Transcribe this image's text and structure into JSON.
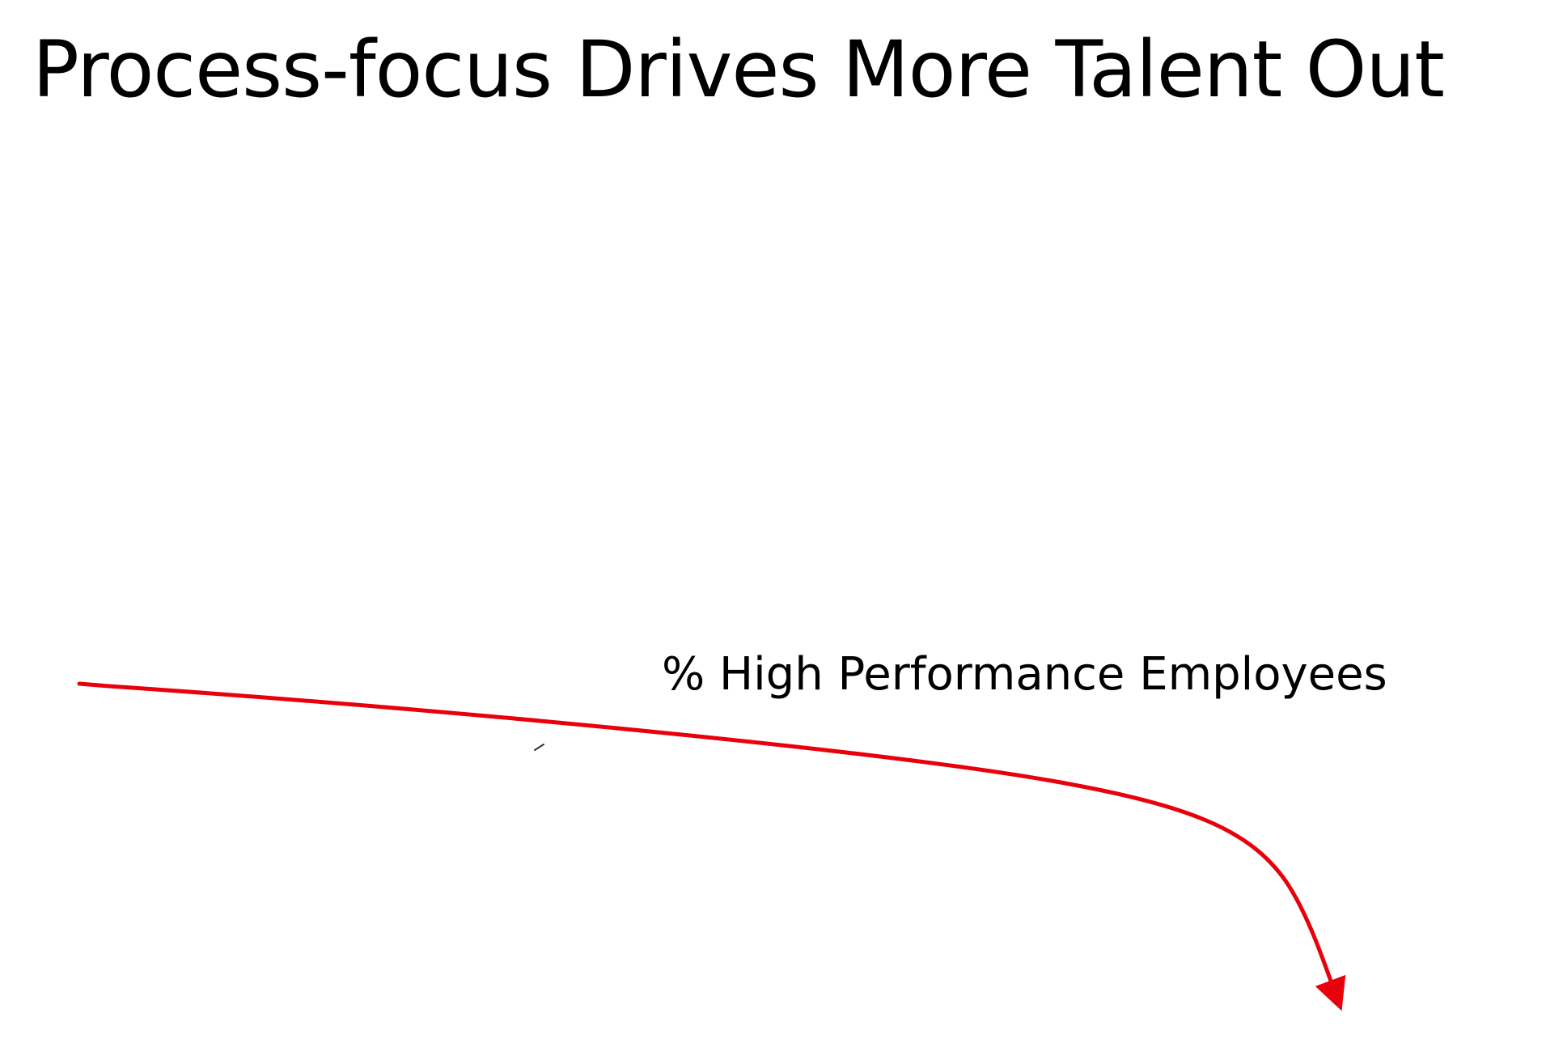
{
  "slide": {
    "title": "Process-focus Drives More Talent Out"
  },
  "diagram": {
    "curve_label": "% High Performance Employees",
    "curve_color": "#e8000b",
    "curve_direction": "declining"
  }
}
